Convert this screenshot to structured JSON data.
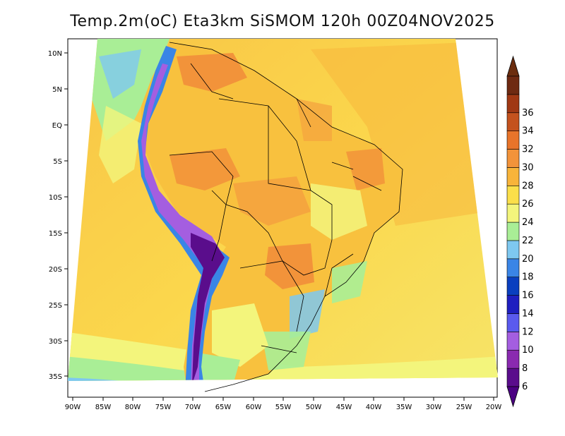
{
  "title": "Temp.2m(oC) Eta3km SiSMOM 120h 00Z04NOV2025",
  "lat_labels": [
    "10N",
    "5N",
    "EQ",
    "5S",
    "10S",
    "15S",
    "20S",
    "25S",
    "30S",
    "35S"
  ],
  "lon_labels": [
    "90W",
    "85W",
    "80W",
    "75W",
    "70W",
    "65W",
    "60W",
    "55W",
    "50W",
    "45W",
    "40W",
    "35W",
    "30W",
    "25W",
    "20W"
  ],
  "colorbar": {
    "labels": [
      "6",
      "8",
      "10",
      "12",
      "14",
      "16",
      "18",
      "20",
      "22",
      "24",
      "26",
      "28",
      "30",
      "32",
      "34",
      "36"
    ],
    "colors": [
      "#5a0d8c",
      "#8a2ab0",
      "#a45ee0",
      "#5a5aee",
      "#1f1fc0",
      "#0a3fbf",
      "#3a85e6",
      "#7ec8f0",
      "#a9ee96",
      "#f3f57c",
      "#fbdf4a",
      "#f8b43a",
      "#f2933a",
      "#e8742a",
      "#c4521e",
      "#a03814",
      "#6e2a12"
    ],
    "min_color": "#4b0082",
    "max_color": "#6b2d0f"
  }
}
